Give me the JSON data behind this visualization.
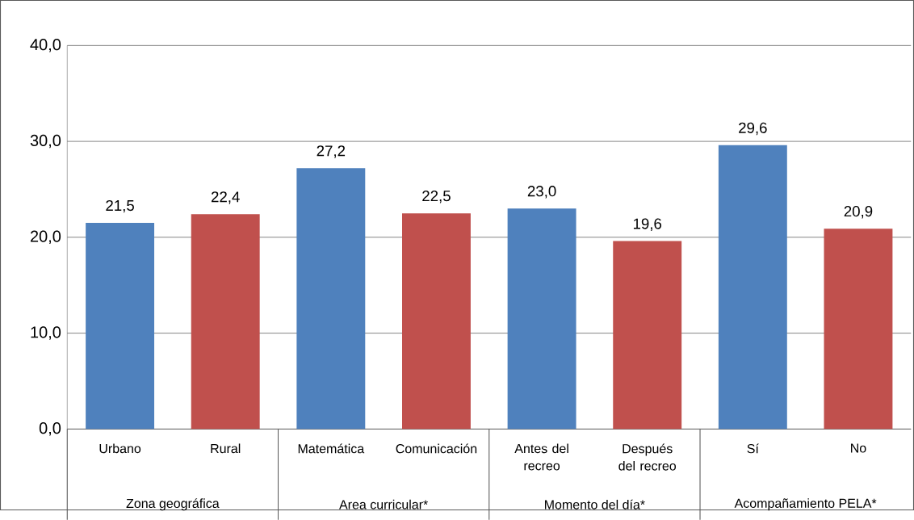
{
  "chart_data": {
    "type": "bar",
    "categories": [
      "Urbano",
      "Rural",
      "Matemática",
      "Comunicación",
      "Antes del recreo",
      "Después del recreo",
      "Sí",
      "No"
    ],
    "values": [
      21.5,
      22.4,
      27.2,
      22.5,
      23.0,
      19.6,
      29.6,
      20.9
    ],
    "value_labels": [
      "21,5",
      "22,4",
      "27,2",
      "22,5",
      "23,0",
      "19,6",
      "29,6",
      "20,9"
    ],
    "colors": [
      "#4f81bd",
      "#c0504d",
      "#4f81bd",
      "#c0504d",
      "#4f81bd",
      "#c0504d",
      "#4f81bd",
      "#c0504d"
    ],
    "annotations": [
      "Zona geográfica",
      "Area curricular*",
      "Momento del día*",
      "Acompañamiento PELA*"
    ],
    "ylim": [
      0,
      40
    ],
    "yticks": [
      {
        "value": 0,
        "label": "0,0"
      },
      {
        "value": 10,
        "label": "10,0"
      },
      {
        "value": 20,
        "label": "20,0"
      },
      {
        "value": 30,
        "label": "30,0"
      },
      {
        "value": 40,
        "label": "40,0"
      }
    ],
    "grid": "y"
  }
}
